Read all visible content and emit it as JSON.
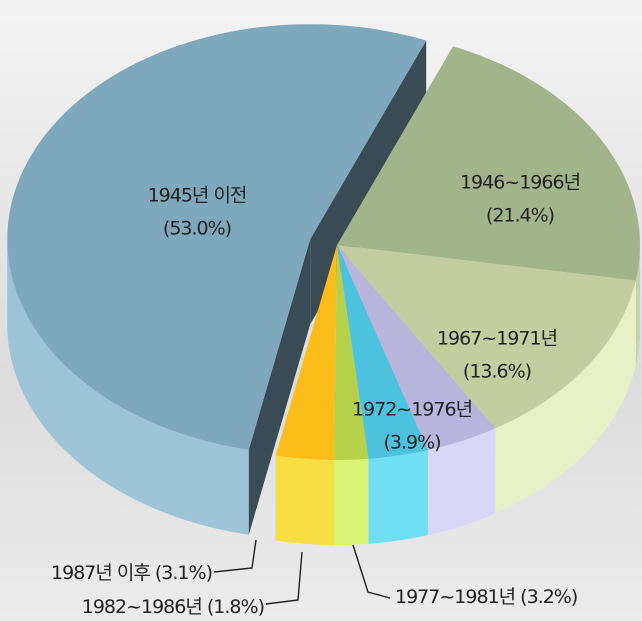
{
  "chart_data": {
    "type": "pie",
    "categories": [
      "1945년 이전",
      "1946~1966년",
      "1967~1971년",
      "1972~1976년",
      "1977~1981년 ",
      "1982~1986년 ",
      "1987년 이후 "
    ],
    "values": [
      53.0,
      21.4,
      13.6,
      3.9,
      3.2,
      1.8,
      3.1
    ],
    "value_labels": [
      "(53.0%)",
      "(21.4%)",
      "(13.6%)",
      "(3.9%)",
      "(3.2%)",
      "(1.8%)",
      "(3.1%)"
    ],
    "colors": [
      "#7ea8bc",
      "#a2b58a",
      "#c4cd9f",
      "#b8b5dc",
      "#4cc2de",
      "#b5d24a",
      "#fbbd19"
    ],
    "exploded": [
      true,
      false,
      false,
      false,
      false,
      false,
      false
    ]
  }
}
